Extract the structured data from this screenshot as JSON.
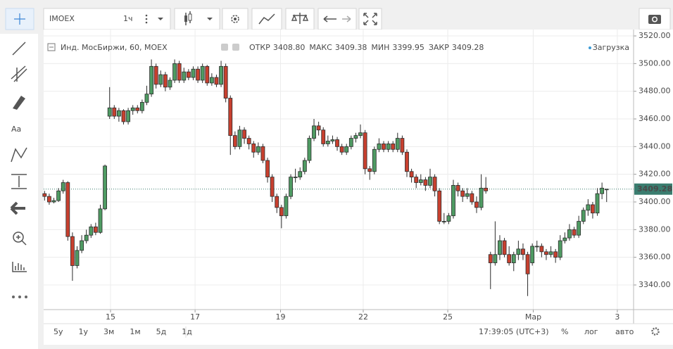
{
  "toolbar": {
    "symbol": "IMOEX",
    "interval": "1ч"
  },
  "chart_data": {
    "type": "candlestick",
    "title": "Инд. МосБиржи, 60, MOEX",
    "ohlc": [
      {
        "label": "ОТКР",
        "value": "3408.80"
      },
      {
        "label": "МАКС",
        "value": "3409.38"
      },
      {
        "label": "МИН",
        "value": "3399.95"
      },
      {
        "label": "ЗАКР",
        "value": "3409.28"
      }
    ],
    "status": "Загрузка",
    "up_color": "#4f9b63",
    "down_color": "#c8402f",
    "border_color": "#2b2b2b",
    "last_price": 3409.28,
    "last_price_color": "#3a7d6f",
    "grid": true,
    "ylim": [
      3322.2,
      3524.6
    ],
    "yticks": [
      {
        "value": 3340,
        "label": "3340.00"
      },
      {
        "value": 3360,
        "label": "3360.00"
      },
      {
        "value": 3380,
        "label": "3380.00"
      },
      {
        "value": 3400,
        "label": "3400.00"
      },
      {
        "value": 3420,
        "label": "3420.00"
      },
      {
        "value": 3440,
        "label": "3440.00"
      },
      {
        "value": 3460,
        "label": "3460.00"
      },
      {
        "value": 3480,
        "label": "3480.00"
      },
      {
        "value": 3500,
        "label": "3500.00"
      },
      {
        "value": 3520,
        "label": "3520.00"
      }
    ],
    "xlim": [
      -0.2,
      126.8
    ],
    "xticks": [
      {
        "value": 14.2,
        "label": "15"
      },
      {
        "value": 32.4,
        "label": "17"
      },
      {
        "value": 50.8,
        "label": "19"
      },
      {
        "value": 68.6,
        "label": "22"
      },
      {
        "value": 86.8,
        "label": "25"
      },
      {
        "value": 105.2,
        "label": "Мар"
      },
      {
        "value": 123.3,
        "label": "3"
      }
    ],
    "candles": [
      [
        3406,
        3408,
        3401,
        3404
      ],
      [
        3404,
        3406,
        3398,
        3400
      ],
      [
        3400,
        3403,
        3399,
        3401
      ],
      [
        3401,
        3410,
        3400,
        3408
      ],
      [
        3408,
        3416,
        3406,
        3414
      ],
      [
        3414,
        3415,
        3372,
        3375
      ],
      [
        3375,
        3378,
        3343,
        3354
      ],
      [
        3354,
        3368,
        3352,
        3365
      ],
      [
        3365,
        3376,
        3363,
        3372
      ],
      [
        3372,
        3380,
        3370,
        3376
      ],
      [
        3376,
        3384,
        3374,
        3382
      ],
      [
        3382,
        3385,
        3376,
        3378
      ],
      [
        3378,
        3398,
        3377,
        3395
      ],
      [
        3395,
        3427,
        3394,
        3426
      ],
      [
        3462,
        3483,
        3460,
        3468
      ],
      [
        3468,
        3470,
        3460,
        3462
      ],
      [
        3462,
        3468,
        3458,
        3466
      ],
      [
        3466,
        3467,
        3456,
        3458
      ],
      [
        3458,
        3468,
        3456,
        3466
      ],
      [
        3466,
        3470,
        3463,
        3468
      ],
      [
        3468,
        3470,
        3464,
        3466
      ],
      [
        3466,
        3474,
        3464,
        3472
      ],
      [
        3472,
        3484,
        3470,
        3478
      ],
      [
        3478,
        3503,
        3476,
        3498
      ],
      [
        3498,
        3500,
        3482,
        3485
      ],
      [
        3485,
        3495,
        3483,
        3492
      ],
      [
        3492,
        3494,
        3480,
        3483
      ],
      [
        3483,
        3490,
        3481,
        3488
      ],
      [
        3488,
        3503,
        3486,
        3500
      ],
      [
        3500,
        3502,
        3486,
        3488
      ],
      [
        3488,
        3497,
        3486,
        3494
      ],
      [
        3494,
        3496,
        3488,
        3490
      ],
      [
        3490,
        3498,
        3488,
        3496
      ],
      [
        3496,
        3498,
        3486,
        3488
      ],
      [
        3488,
        3500,
        3486,
        3498
      ],
      [
        3498,
        3499,
        3484,
        3486
      ],
      [
        3486,
        3493,
        3484,
        3490
      ],
      [
        3490,
        3492,
        3483,
        3485
      ],
      [
        3485,
        3502,
        3483,
        3498
      ],
      [
        3498,
        3500,
        3472,
        3475
      ],
      [
        3475,
        3477,
        3434,
        3448
      ],
      [
        3448,
        3451,
        3438,
        3440
      ],
      [
        3440,
        3455,
        3438,
        3452
      ],
      [
        3452,
        3454,
        3442,
        3446
      ],
      [
        3446,
        3448,
        3438,
        3442
      ],
      [
        3442,
        3444,
        3432,
        3436
      ],
      [
        3436,
        3443,
        3434,
        3440
      ],
      [
        3440,
        3442,
        3428,
        3430
      ],
      [
        3430,
        3432,
        3414,
        3418
      ],
      [
        3418,
        3420,
        3400,
        3404
      ],
      [
        3404,
        3406,
        3392,
        3396
      ],
      [
        3396,
        3398,
        3381,
        3390
      ],
      [
        3390,
        3406,
        3388,
        3404
      ],
      [
        3404,
        3420,
        3402,
        3418
      ],
      [
        3418,
        3424,
        3414,
        3418
      ],
      [
        3418,
        3425,
        3416,
        3422
      ],
      [
        3422,
        3432,
        3420,
        3430
      ],
      [
        3430,
        3448,
        3428,
        3446
      ],
      [
        3446,
        3460,
        3444,
        3455
      ],
      [
        3455,
        3458,
        3448,
        3452
      ],
      [
        3452,
        3454,
        3440,
        3442
      ],
      [
        3442,
        3448,
        3440,
        3444
      ],
      [
        3444,
        3448,
        3442,
        3445
      ],
      [
        3445,
        3447,
        3437,
        3440
      ],
      [
        3440,
        3442,
        3434,
        3436
      ],
      [
        3436,
        3442,
        3434,
        3440
      ],
      [
        3440,
        3448,
        3438,
        3446
      ],
      [
        3446,
        3450,
        3443,
        3448
      ],
      [
        3448,
        3456,
        3446,
        3450
      ],
      [
        3450,
        3452,
        3420,
        3424
      ],
      [
        3424,
        3426,
        3416,
        3422
      ],
      [
        3422,
        3440,
        3420,
        3438
      ],
      [
        3438,
        3446,
        3436,
        3442
      ],
      [
        3442,
        3444,
        3436,
        3438
      ],
      [
        3438,
        3444,
        3436,
        3442
      ],
      [
        3442,
        3444,
        3436,
        3438
      ],
      [
        3438,
        3450,
        3436,
        3446
      ],
      [
        3446,
        3448,
        3434,
        3436
      ],
      [
        3436,
        3438,
        3418,
        3422
      ],
      [
        3422,
        3424,
        3414,
        3418
      ],
      [
        3418,
        3420,
        3410,
        3414
      ],
      [
        3414,
        3420,
        3412,
        3416
      ],
      [
        3416,
        3418,
        3408,
        3412
      ],
      [
        3412,
        3424,
        3410,
        3418
      ],
      [
        3418,
        3420,
        3404,
        3408
      ],
      [
        3408,
        3410,
        3384,
        3386
      ],
      [
        3386,
        3392,
        3384,
        3386
      ],
      [
        3386,
        3392,
        3384,
        3390
      ],
      [
        3390,
        3416,
        3388,
        3412
      ],
      [
        3412,
        3414,
        3404,
        3408
      ],
      [
        3408,
        3410,
        3400,
        3404
      ],
      [
        3404,
        3410,
        3402,
        3406
      ],
      [
        3406,
        3408,
        3398,
        3400
      ],
      [
        3400,
        3404,
        3392,
        3396
      ],
      [
        3396,
        3420,
        3394,
        3410
      ],
      [
        3410,
        3418,
        3406,
        3408
      ],
      [
        3362,
        3364,
        3337,
        3356
      ],
      [
        3356,
        3386,
        3354,
        3362
      ],
      [
        3362,
        3376,
        3358,
        3372
      ],
      [
        3372,
        3374,
        3360,
        3362
      ],
      [
        3362,
        3368,
        3354,
        3356
      ],
      [
        3356,
        3364,
        3350,
        3362
      ],
      [
        3362,
        3372,
        3358,
        3366
      ],
      [
        3366,
        3370,
        3358,
        3362
      ],
      [
        3362,
        3364,
        3332,
        3348
      ],
      [
        3356,
        3370,
        3354,
        3368
      ],
      [
        3368,
        3372,
        3364,
        3368
      ],
      [
        3368,
        3370,
        3360,
        3364
      ],
      [
        3364,
        3366,
        3358,
        3362
      ],
      [
        3362,
        3368,
        3360,
        3364
      ],
      [
        3364,
        3366,
        3356,
        3360
      ],
      [
        3360,
        3376,
        3358,
        3372
      ],
      [
        3372,
        3378,
        3370,
        3374
      ],
      [
        3374,
        3384,
        3372,
        3380
      ],
      [
        3380,
        3382,
        3374,
        3376
      ],
      [
        3376,
        3390,
        3374,
        3386
      ],
      [
        3386,
        3396,
        3384,
        3394
      ],
      [
        3394,
        3402,
        3390,
        3398
      ],
      [
        3398,
        3400,
        3388,
        3392
      ],
      [
        3392,
        3410,
        3390,
        3406
      ],
      [
        3406,
        3414,
        3402,
        3410
      ],
      [
        3408.8,
        3409.38,
        3399.95,
        3409.28
      ]
    ]
  },
  "bottom_bar": {
    "ranges": [
      "5у",
      "1у",
      "3м",
      "1м",
      "5д",
      "1д"
    ],
    "clock": "17:39:05 (UTC+3)",
    "options": [
      "%",
      "лог",
      "авто"
    ]
  }
}
